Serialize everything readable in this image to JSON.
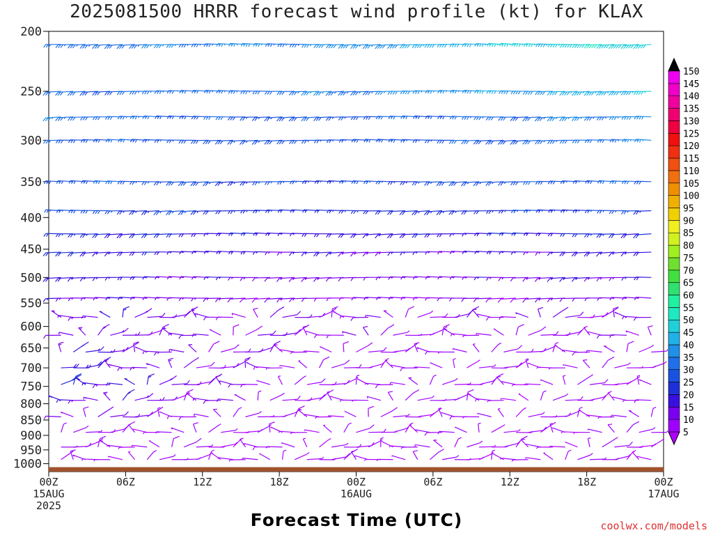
{
  "chart_data": {
    "type": "wind_barb_time_height",
    "title": "2025081500 HRRR forecast wind profile (kt) for KLAX",
    "xlabel": "Forecast Time (UTC)",
    "ylabel": "",
    "y_axis": {
      "scale": "log",
      "reversed": true,
      "range": [
        200,
        1030
      ],
      "ticks": [
        200,
        250,
        300,
        350,
        400,
        450,
        500,
        550,
        600,
        650,
        700,
        750,
        800,
        850,
        900,
        950,
        1000
      ]
    },
    "x_axis": {
      "range_hours": [
        0,
        48
      ],
      "ticks": [
        {
          "hour": 0,
          "lines": [
            "00Z",
            "15AUG",
            "2025"
          ]
        },
        {
          "hour": 6,
          "lines": [
            "06Z"
          ]
        },
        {
          "hour": 12,
          "lines": [
            "12Z"
          ]
        },
        {
          "hour": 18,
          "lines": [
            "18Z"
          ]
        },
        {
          "hour": 24,
          "lines": [
            "00Z",
            "16AUG"
          ]
        },
        {
          "hour": 30,
          "lines": [
            "06Z"
          ]
        },
        {
          "hour": 36,
          "lines": [
            "12Z"
          ]
        },
        {
          "hour": 42,
          "lines": [
            "18Z"
          ]
        },
        {
          "hour": 48,
          "lines": [
            "00Z",
            "17AUG"
          ]
        }
      ]
    },
    "colorbar": {
      "levels": [
        5,
        10,
        15,
        20,
        25,
        30,
        35,
        40,
        45,
        50,
        55,
        60,
        65,
        70,
        75,
        80,
        85,
        90,
        95,
        100,
        105,
        110,
        115,
        120,
        125,
        130,
        135,
        140,
        145,
        150
      ],
      "colors": [
        "#a000ff",
        "#7a00f0",
        "#3a10e0",
        "#2030d8",
        "#1a52e0",
        "#1f70e8",
        "#2090e8",
        "#22b0e8",
        "#20d0d8",
        "#20e8c0",
        "#20f0a0",
        "#30e070",
        "#40e040",
        "#70e030",
        "#a0f020",
        "#d0f020",
        "#f0f020",
        "#f0d000",
        "#f0b000",
        "#f09000",
        "#f07010",
        "#f05010",
        "#f03010",
        "#f01010",
        "#f00040",
        "#f00070",
        "#f000a0",
        "#f000c8",
        "#f000f0",
        "#d000f0"
      ],
      "under_color": "#b000ff",
      "over_color": "#000000"
    },
    "wind_rows": [
      {
        "p": 210,
        "speeds": [
          32,
          35,
          36,
          40,
          46,
          50
        ]
      },
      {
        "p": 250,
        "speeds": [
          30,
          32,
          33,
          36,
          40,
          46
        ]
      },
      {
        "p": 275,
        "speeds": [
          34,
          30,
          28,
          30,
          32,
          38
        ]
      },
      {
        "p": 300,
        "speeds": [
          30,
          28,
          27,
          28,
          30,
          34
        ]
      },
      {
        "p": 350,
        "speeds": [
          30,
          27,
          25,
          26,
          28,
          30
        ]
      },
      {
        "p": 390,
        "speeds": [
          28,
          25,
          22,
          22,
          24,
          26
        ]
      },
      {
        "p": 425,
        "speeds": [
          22,
          20,
          18,
          18,
          20,
          22
        ]
      },
      {
        "p": 455,
        "speeds": [
          20,
          18,
          16,
          15,
          16,
          18
        ]
      },
      {
        "p": 500,
        "speeds": [
          18,
          15,
          13,
          12,
          14,
          16
        ]
      },
      {
        "p": 540,
        "speeds": [
          16,
          13,
          11,
          10,
          11,
          13
        ]
      },
      {
        "p": 580,
        "speeds": [
          15,
          12,
          10,
          9,
          10,
          11
        ]
      },
      {
        "p": 620,
        "speeds": [
          14,
          11,
          9,
          8,
          8,
          9
        ]
      },
      {
        "p": 660,
        "speeds": [
          16,
          12,
          8,
          7,
          7,
          8
        ]
      },
      {
        "p": 700,
        "speeds": [
          18,
          12,
          8,
          6,
          6,
          7
        ]
      },
      {
        "p": 745,
        "speeds": [
          20,
          12,
          8,
          7,
          6,
          7
        ]
      },
      {
        "p": 790,
        "speeds": [
          18,
          10,
          8,
          7,
          6,
          6
        ]
      },
      {
        "p": 840,
        "speeds": [
          12,
          8,
          7,
          6,
          6,
          6
        ]
      },
      {
        "p": 890,
        "speeds": [
          8,
          6,
          6,
          6,
          6,
          6
        ]
      },
      {
        "p": 940,
        "speeds": [
          8,
          6,
          6,
          7,
          6,
          6
        ]
      },
      {
        "p": 985,
        "speeds": [
          7,
          5,
          6,
          7,
          5,
          6
        ]
      }
    ],
    "surface_color": "#a0522d"
  },
  "credit": "coolwx.com/models"
}
